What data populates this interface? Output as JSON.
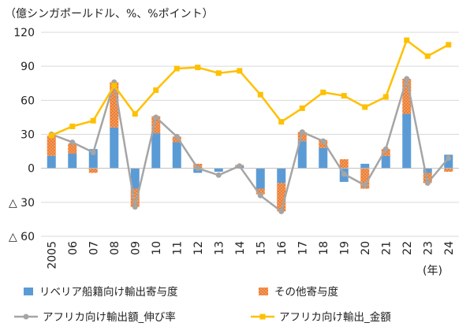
{
  "chart_data": {
    "type": "bar",
    "title": "",
    "unit_label": "（億シンガポールドル、%、%ポイント）",
    "x_unit_label": "(年)",
    "categories": [
      "2005",
      "06",
      "07",
      "08",
      "09",
      "10",
      "11",
      "12",
      "13",
      "14",
      "15",
      "16",
      "17",
      "18",
      "19",
      "20",
      "21",
      "22",
      "23",
      "24"
    ],
    "ylim": [
      -60,
      120
    ],
    "y_ticks": [
      {
        "value": 120,
        "label": "120"
      },
      {
        "value": 90,
        "label": "90"
      },
      {
        "value": 60,
        "label": "60"
      },
      {
        "value": 30,
        "label": "30"
      },
      {
        "value": 0,
        "label": "0"
      },
      {
        "value": -30,
        "label": "△ 30"
      },
      {
        "value": -60,
        "label": "△ 60"
      }
    ],
    "grid": true,
    "legend_placement": "bottom",
    "stacked_series": [
      {
        "name": "リベリア船籍向け輸出寄与度",
        "color": "#5b9bd5",
        "values": [
          11,
          13,
          17,
          36,
          -18,
          31,
          23,
          -4,
          -3,
          2,
          -18,
          -13,
          24,
          18,
          -12,
          4,
          11,
          48,
          -4,
          12
        ]
      },
      {
        "name": "その他寄与度",
        "color": "#ed7d31",
        "values": [
          18,
          9,
          -4,
          40,
          -16,
          15,
          5,
          4,
          0,
          1,
          -5,
          -25,
          8,
          7,
          8,
          -18,
          6,
          31,
          -9,
          -3
        ]
      }
    ],
    "line_series": [
      {
        "name": "アフリカ向け輸出額_伸び率",
        "color": "#a5a5a5",
        "marker": "circle",
        "values": [
          30,
          23,
          14,
          76,
          -34,
          45,
          28,
          0,
          -6,
          2,
          -24,
          -38,
          32,
          24,
          -5,
          -15,
          17,
          79,
          -13,
          9
        ]
      },
      {
        "name": "アフリカ向け輸出_金額",
        "color": "#ffc000",
        "marker": "square",
        "values": [
          29,
          37,
          42,
          73,
          48,
          69,
          88,
          89,
          84,
          86,
          65,
          41,
          53,
          67,
          64,
          54,
          63,
          113,
          99,
          109
        ]
      }
    ]
  }
}
